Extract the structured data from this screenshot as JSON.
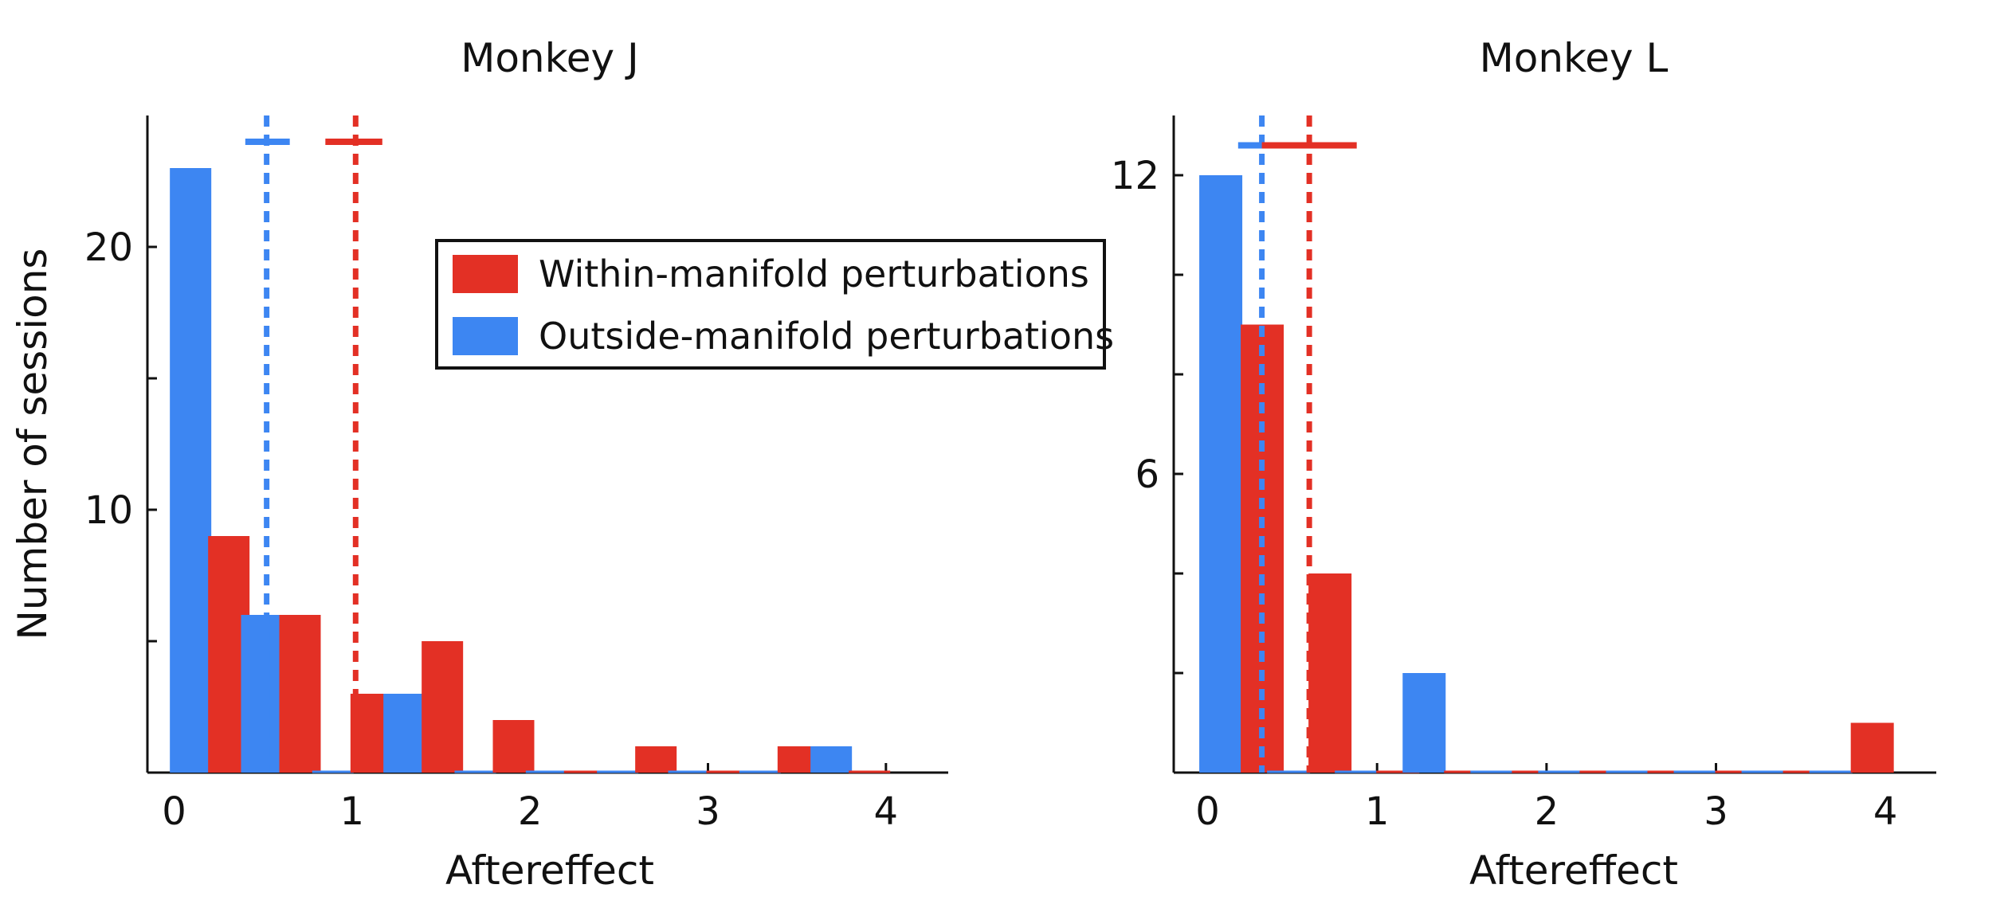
{
  "chart_data": [
    {
      "type": "bar",
      "title": "Monkey J",
      "xlabel": "Aftereffect",
      "ylabel": "Number of sessions",
      "xlim": [
        -0.15,
        4.35
      ],
      "ylim": [
        0,
        25
      ],
      "xticks": [
        0,
        1,
        2,
        3,
        4
      ],
      "xtick_labels": [
        "0",
        "1",
        "2",
        "3",
        "4"
      ],
      "yticks": [
        5,
        10,
        15,
        20
      ],
      "ytick_labels": [
        "",
        "10",
        "",
        "20"
      ],
      "bin_centers": [
        0.2,
        0.6,
        1.0,
        1.4,
        1.8,
        2.2,
        2.6,
        3.0,
        3.4,
        3.8
      ],
      "series": [
        {
          "name": "Outside-manifold perturbations",
          "color": "#3d86f2",
          "values": [
            23,
            6,
            0,
            3,
            0,
            0,
            0,
            0,
            0,
            1
          ]
        },
        {
          "name": "Within-manifold perturbations",
          "color": "#e33025",
          "values": [
            9,
            6,
            3,
            5,
            2,
            0,
            1,
            0,
            1,
            0
          ]
        }
      ],
      "mean_lines": [
        {
          "series": "Outside-manifold perturbations",
          "color": "#3d86f2",
          "x": 0.52,
          "ci": [
            0.4,
            0.65
          ],
          "marker_y": 24
        },
        {
          "series": "Within-manifold perturbations",
          "color": "#e33025",
          "x": 1.02,
          "ci": [
            0.85,
            1.17
          ],
          "marker_y": 24
        }
      ],
      "legend": {
        "position": "top-right",
        "entries": [
          {
            "label": "Within-manifold perturbations",
            "color": "#e33025"
          },
          {
            "label": "Outside-manifold perturbations",
            "color": "#3d86f2"
          }
        ]
      }
    },
    {
      "type": "bar",
      "title": "Monkey L",
      "xlabel": "Aftereffect",
      "ylabel": "",
      "xlim": [
        -0.2,
        4.3
      ],
      "ylim": [
        0,
        13.2
      ],
      "xticks": [
        0,
        1,
        2,
        3,
        4
      ],
      "xtick_labels": [
        "0",
        "1",
        "2",
        "3",
        "4"
      ],
      "yticks": [
        2,
        4,
        6,
        8,
        10,
        12
      ],
      "ytick_labels": [
        "",
        "",
        "6",
        "",
        "",
        "12"
      ],
      "bin_centers": [
        0.2,
        0.6,
        1.0,
        1.4,
        1.8,
        2.2,
        2.6,
        3.0,
        3.4,
        3.8
      ],
      "series": [
        {
          "name": "Outside-manifold perturbations",
          "color": "#3d86f2",
          "values": [
            12,
            0,
            0,
            2,
            0,
            0,
            0,
            0,
            0,
            0
          ]
        },
        {
          "name": "Within-manifold perturbations",
          "color": "#e33025",
          "values": [
            9,
            4,
            0,
            0,
            0,
            0,
            0,
            0,
            0,
            1
          ]
        }
      ],
      "mean_lines": [
        {
          "series": "Outside-manifold perturbations",
          "color": "#3d86f2",
          "x": 0.32,
          "ci": [
            0.18,
            0.5
          ],
          "marker_y": 12.6
        },
        {
          "series": "Within-manifold perturbations",
          "color": "#e33025",
          "x": 0.6,
          "ci": [
            0.32,
            0.88
          ],
          "marker_y": 12.6
        }
      ]
    }
  ]
}
